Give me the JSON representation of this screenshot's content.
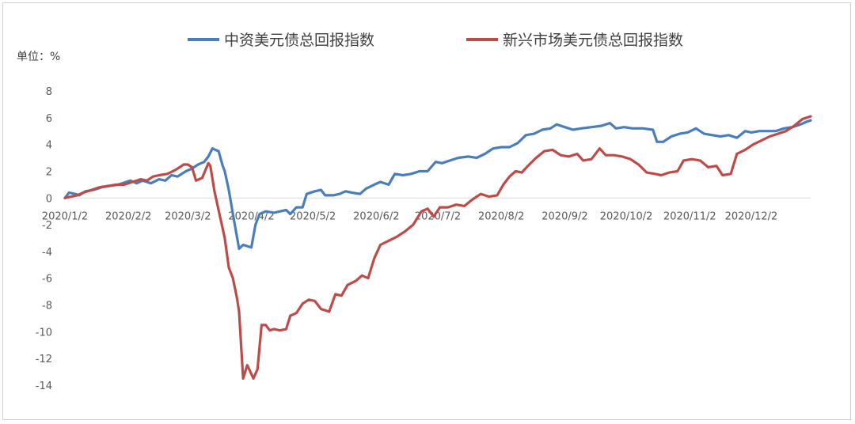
{
  "chart_data": {
    "type": "line",
    "unit_label": "单位：%",
    "legend_position": "top",
    "grid": false,
    "ylim": [
      -14,
      8
    ],
    "y_ticks": [
      "8",
      "6",
      "4",
      "2",
      "0",
      "-2",
      "-4",
      "-6",
      "-8",
      "-10",
      "-12",
      "-14"
    ],
    "x_ticks": [
      "2020/1/2",
      "2020/2/2",
      "2020/3/2",
      "2020/4/2",
      "2020/5/2",
      "2020/6/2",
      "2020/7/2",
      "2020/8/2",
      "2020/9/2",
      "2020/10/2",
      "2020/11/2",
      "2020/12/2"
    ],
    "x_range": [
      "2020/1/2",
      "2020/12/31"
    ],
    "series": [
      {
        "name": "中资美元债总回报指数",
        "color": "#4a7ebb",
        "points": [
          [
            "2020/1/2",
            0.0
          ],
          [
            "2020/1/4",
            0.4
          ],
          [
            "2020/1/7",
            0.3
          ],
          [
            "2020/1/9",
            0.2
          ],
          [
            "2020/1/12",
            0.5
          ],
          [
            "2020/1/16",
            0.6
          ],
          [
            "2020/1/20",
            0.8
          ],
          [
            "2020/1/24",
            0.9
          ],
          [
            "2020/1/28",
            1.0
          ],
          [
            "2020/2/1",
            1.2
          ],
          [
            "2020/2/3",
            1.3
          ],
          [
            "2020/2/6",
            1.1
          ],
          [
            "2020/2/9",
            1.3
          ],
          [
            "2020/2/13",
            1.1
          ],
          [
            "2020/2/17",
            1.4
          ],
          [
            "2020/2/20",
            1.3
          ],
          [
            "2020/2/23",
            1.7
          ],
          [
            "2020/2/26",
            1.6
          ],
          [
            "2020/3/1",
            2.0
          ],
          [
            "2020/3/4",
            2.2
          ],
          [
            "2020/3/7",
            2.5
          ],
          [
            "2020/3/10",
            2.7
          ],
          [
            "2020/3/12",
            3.1
          ],
          [
            "2020/3/14",
            3.7
          ],
          [
            "2020/3/17",
            3.5
          ],
          [
            "2020/3/19",
            2.4
          ],
          [
            "2020/3/20",
            2.0
          ],
          [
            "2020/3/22",
            0.6
          ],
          [
            "2020/3/24",
            -1.2
          ],
          [
            "2020/3/27",
            -3.8
          ],
          [
            "2020/3/29",
            -3.5
          ],
          [
            "2020/4/2",
            -3.7
          ],
          [
            "2020/4/4",
            -2.0
          ],
          [
            "2020/4/6",
            -1.2
          ],
          [
            "2020/4/9",
            -1.0
          ],
          [
            "2020/4/13",
            -1.1
          ],
          [
            "2020/4/16",
            -1.0
          ],
          [
            "2020/4/19",
            -0.9
          ],
          [
            "2020/4/21",
            -1.2
          ],
          [
            "2020/4/24",
            -0.7
          ],
          [
            "2020/4/27",
            -0.7
          ],
          [
            "2020/4/29",
            0.3
          ],
          [
            "2020/5/3",
            0.5
          ],
          [
            "2020/5/6",
            0.6
          ],
          [
            "2020/5/8",
            0.2
          ],
          [
            "2020/5/12",
            0.2
          ],
          [
            "2020/5/15",
            0.3
          ],
          [
            "2020/5/18",
            0.5
          ],
          [
            "2020/5/21",
            0.4
          ],
          [
            "2020/5/25",
            0.3
          ],
          [
            "2020/5/28",
            0.7
          ],
          [
            "2020/6/1",
            1.0
          ],
          [
            "2020/6/4",
            1.2
          ],
          [
            "2020/6/8",
            1.0
          ],
          [
            "2020/6/11",
            1.8
          ],
          [
            "2020/6/15",
            1.7
          ],
          [
            "2020/6/19",
            1.8
          ],
          [
            "2020/6/23",
            2.0
          ],
          [
            "2020/6/27",
            2.0
          ],
          [
            "2020/7/1",
            2.7
          ],
          [
            "2020/7/4",
            2.6
          ],
          [
            "2020/7/8",
            2.8
          ],
          [
            "2020/7/12",
            3.0
          ],
          [
            "2020/7/17",
            3.1
          ],
          [
            "2020/7/21",
            3.0
          ],
          [
            "2020/7/25",
            3.3
          ],
          [
            "2020/7/29",
            3.7
          ],
          [
            "2020/8/2",
            3.8
          ],
          [
            "2020/8/6",
            3.8
          ],
          [
            "2020/8/10",
            4.1
          ],
          [
            "2020/8/14",
            4.7
          ],
          [
            "2020/8/18",
            4.8
          ],
          [
            "2020/8/22",
            5.1
          ],
          [
            "2020/8/26",
            5.2
          ],
          [
            "2020/8/29",
            5.5
          ],
          [
            "2020/9/2",
            5.3
          ],
          [
            "2020/9/6",
            5.1
          ],
          [
            "2020/9/10",
            5.2
          ],
          [
            "2020/9/15",
            5.3
          ],
          [
            "2020/9/20",
            5.4
          ],
          [
            "2020/9/24",
            5.6
          ],
          [
            "2020/9/27",
            5.2
          ],
          [
            "2020/10/1",
            5.3
          ],
          [
            "2020/10/5",
            5.2
          ],
          [
            "2020/10/10",
            5.2
          ],
          [
            "2020/10/15",
            5.1
          ],
          [
            "2020/10/17",
            4.2
          ],
          [
            "2020/10/20",
            4.2
          ],
          [
            "2020/10/24",
            4.6
          ],
          [
            "2020/10/28",
            4.8
          ],
          [
            "2020/11/1",
            4.9
          ],
          [
            "2020/11/5",
            5.2
          ],
          [
            "2020/11/9",
            4.8
          ],
          [
            "2020/11/13",
            4.7
          ],
          [
            "2020/11/17",
            4.6
          ],
          [
            "2020/11/21",
            4.7
          ],
          [
            "2020/11/25",
            4.5
          ],
          [
            "2020/11/29",
            5.0
          ],
          [
            "2020/12/2",
            4.9
          ],
          [
            "2020/12/6",
            5.0
          ],
          [
            "2020/12/10",
            5.0
          ],
          [
            "2020/12/14",
            5.0
          ],
          [
            "2020/12/18",
            5.2
          ],
          [
            "2020/12/22",
            5.3
          ],
          [
            "2020/12/26",
            5.5
          ],
          [
            "2020/12/29",
            5.7
          ],
          [
            "2020/12/31",
            5.8
          ]
        ]
      },
      {
        "name": "新兴市场美元债总回报指数",
        "color": "#be4b48",
        "points": [
          [
            "2020/1/2",
            0.0
          ],
          [
            "2020/1/5",
            0.1
          ],
          [
            "2020/1/8",
            0.2
          ],
          [
            "2020/1/11",
            0.4
          ],
          [
            "2020/1/15",
            0.6
          ],
          [
            "2020/1/19",
            0.8
          ],
          [
            "2020/1/23",
            0.9
          ],
          [
            "2020/1/27",
            1.0
          ],
          [
            "2020/1/31",
            1.0
          ],
          [
            "2020/2/4",
            1.2
          ],
          [
            "2020/2/8",
            1.4
          ],
          [
            "2020/2/11",
            1.3
          ],
          [
            "2020/2/14",
            1.6
          ],
          [
            "2020/2/17",
            1.7
          ],
          [
            "2020/2/21",
            1.8
          ],
          [
            "2020/2/25",
            2.1
          ],
          [
            "2020/2/29",
            2.5
          ],
          [
            "2020/3/2",
            2.5
          ],
          [
            "2020/3/4",
            2.3
          ],
          [
            "2020/3/6",
            1.3
          ],
          [
            "2020/3/9",
            1.5
          ],
          [
            "2020/3/12",
            2.6
          ],
          [
            "2020/3/13",
            2.4
          ],
          [
            "2020/3/15",
            0.5
          ],
          [
            "2020/3/18",
            -1.6
          ],
          [
            "2020/3/20",
            -3.0
          ],
          [
            "2020/3/22",
            -5.2
          ],
          [
            "2020/3/24",
            -6.0
          ],
          [
            "2020/3/26",
            -7.5
          ],
          [
            "2020/3/27",
            -8.5
          ],
          [
            "2020/3/29",
            -13.5
          ],
          [
            "2020/3/31",
            -12.5
          ],
          [
            "2020/4/3",
            -13.5
          ],
          [
            "2020/4/5",
            -12.8
          ],
          [
            "2020/4/7",
            -9.5
          ],
          [
            "2020/4/9",
            -9.5
          ],
          [
            "2020/4/11",
            -9.9
          ],
          [
            "2020/4/13",
            -9.8
          ],
          [
            "2020/4/16",
            -9.9
          ],
          [
            "2020/4/19",
            -9.8
          ],
          [
            "2020/4/21",
            -8.8
          ],
          [
            "2020/4/24",
            -8.6
          ],
          [
            "2020/4/27",
            -7.9
          ],
          [
            "2020/4/30",
            -7.6
          ],
          [
            "2020/5/3",
            -7.7
          ],
          [
            "2020/5/6",
            -8.3
          ],
          [
            "2020/5/10",
            -8.5
          ],
          [
            "2020/5/13",
            -7.2
          ],
          [
            "2020/5/16",
            -7.3
          ],
          [
            "2020/5/19",
            -6.5
          ],
          [
            "2020/5/23",
            -6.2
          ],
          [
            "2020/5/26",
            -5.8
          ],
          [
            "2020/5/29",
            -6.0
          ],
          [
            "2020/6/1",
            -4.5
          ],
          [
            "2020/6/4",
            -3.5
          ],
          [
            "2020/6/8",
            -3.2
          ],
          [
            "2020/6/12",
            -2.9
          ],
          [
            "2020/6/16",
            -2.5
          ],
          [
            "2020/6/20",
            -2.0
          ],
          [
            "2020/6/24",
            -1.0
          ],
          [
            "2020/6/27",
            -0.8
          ],
          [
            "2020/6/30",
            -1.4
          ],
          [
            "2020/7/3",
            -0.7
          ],
          [
            "2020/7/7",
            -0.7
          ],
          [
            "2020/7/11",
            -0.5
          ],
          [
            "2020/7/15",
            -0.6
          ],
          [
            "2020/7/19",
            -0.1
          ],
          [
            "2020/7/23",
            0.3
          ],
          [
            "2020/7/27",
            0.1
          ],
          [
            "2020/7/31",
            0.2
          ],
          [
            "2020/8/3",
            1.0
          ],
          [
            "2020/8/6",
            1.6
          ],
          [
            "2020/8/9",
            2.0
          ],
          [
            "2020/8/12",
            1.9
          ],
          [
            "2020/8/15",
            2.4
          ],
          [
            "2020/8/19",
            3.0
          ],
          [
            "2020/8/23",
            3.5
          ],
          [
            "2020/8/27",
            3.6
          ],
          [
            "2020/8/31",
            3.2
          ],
          [
            "2020/9/4",
            3.1
          ],
          [
            "2020/9/8",
            3.3
          ],
          [
            "2020/9/11",
            2.8
          ],
          [
            "2020/9/15",
            2.9
          ],
          [
            "2020/9/19",
            3.7
          ],
          [
            "2020/9/22",
            3.2
          ],
          [
            "2020/9/26",
            3.2
          ],
          [
            "2020/9/30",
            3.1
          ],
          [
            "2020/10/4",
            2.9
          ],
          [
            "2020/10/8",
            2.5
          ],
          [
            "2020/10/12",
            1.9
          ],
          [
            "2020/10/16",
            1.8
          ],
          [
            "2020/10/19",
            1.7
          ],
          [
            "2020/10/23",
            1.9
          ],
          [
            "2020/10/27",
            2.0
          ],
          [
            "2020/10/30",
            2.8
          ],
          [
            "2020/11/3",
            2.9
          ],
          [
            "2020/11/7",
            2.8
          ],
          [
            "2020/11/11",
            2.3
          ],
          [
            "2020/11/15",
            2.4
          ],
          [
            "2020/11/18",
            1.7
          ],
          [
            "2020/11/22",
            1.8
          ],
          [
            "2020/11/25",
            3.3
          ],
          [
            "2020/11/29",
            3.6
          ],
          [
            "2020/12/3",
            4.0
          ],
          [
            "2020/12/7",
            4.3
          ],
          [
            "2020/12/11",
            4.6
          ],
          [
            "2020/12/15",
            4.8
          ],
          [
            "2020/12/19",
            5.0
          ],
          [
            "2020/12/23",
            5.4
          ],
          [
            "2020/12/27",
            5.9
          ],
          [
            "2020/12/31",
            6.1
          ]
        ]
      }
    ]
  }
}
